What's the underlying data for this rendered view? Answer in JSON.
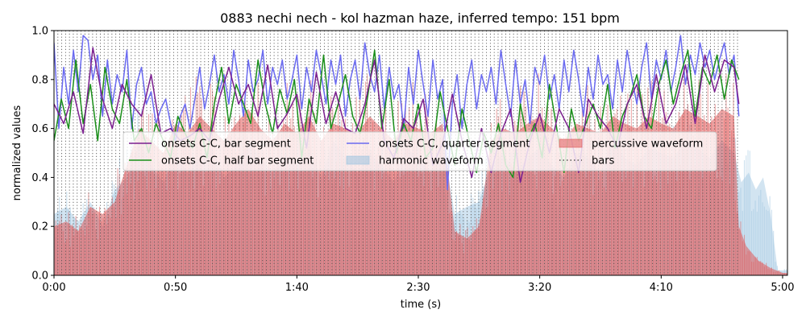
{
  "chart_data": {
    "type": "line",
    "title": "0883 nechi nech - kol hazman haze, inferred tempo: 151 bpm",
    "xlabel": "time (s)",
    "ylabel": "normalized values",
    "xlim": [
      0,
      302
    ],
    "ylim": [
      0,
      1.0
    ],
    "x_ticks": [
      {
        "value": 0,
        "label": "0:00"
      },
      {
        "value": 50,
        "label": "0:50"
      },
      {
        "value": 100,
        "label": "1:40"
      },
      {
        "value": 150,
        "label": "2:30"
      },
      {
        "value": 200,
        "label": "3:20"
      },
      {
        "value": 250,
        "label": "4:10"
      },
      {
        "value": 300,
        "label": "5:00"
      }
    ],
    "y_ticks": [
      {
        "value": 0.0,
        "label": "0.0"
      },
      {
        "value": 0.2,
        "label": "0.2"
      },
      {
        "value": 0.4,
        "label": "0.4"
      },
      {
        "value": 0.6,
        "label": "0.6"
      },
      {
        "value": 0.8,
        "label": "0.8"
      },
      {
        "value": 1.0,
        "label": "1.0"
      }
    ],
    "grid": false,
    "legend_position": "center",
    "bars": {
      "start": 0,
      "end": 282,
      "interval": 1.59,
      "color": "#555555"
    },
    "series": [
      {
        "name": "onsets C-C, bar segment",
        "kind": "line",
        "color": "#7b1f8f",
        "x": [
          0,
          4,
          8,
          12,
          16,
          20,
          24,
          28,
          32,
          36,
          40,
          44,
          48,
          52,
          56,
          60,
          64,
          68,
          72,
          76,
          80,
          84,
          88,
          92,
          96,
          100,
          104,
          108,
          112,
          116,
          120,
          124,
          128,
          132,
          136,
          140,
          144,
          148,
          152,
          156,
          160,
          164,
          168,
          172,
          176,
          180,
          184,
          188,
          192,
          196,
          200,
          204,
          208,
          212,
          216,
          220,
          224,
          228,
          232,
          236,
          240,
          244,
          248,
          252,
          256,
          260,
          264,
          268,
          272,
          276,
          280,
          282
        ],
        "y": [
          0.7,
          0.62,
          0.75,
          0.58,
          0.93,
          0.72,
          0.6,
          0.78,
          0.7,
          0.65,
          0.82,
          0.58,
          0.6,
          0.55,
          0.57,
          0.6,
          0.55,
          0.72,
          0.85,
          0.7,
          0.78,
          0.65,
          0.86,
          0.6,
          0.66,
          0.74,
          0.52,
          0.83,
          0.62,
          0.75,
          0.6,
          0.58,
          0.7,
          0.88,
          0.55,
          0.48,
          0.64,
          0.6,
          0.72,
          0.45,
          0.54,
          0.74,
          0.55,
          0.4,
          0.6,
          0.42,
          0.58,
          0.68,
          0.38,
          0.55,
          0.66,
          0.5,
          0.68,
          0.6,
          0.42,
          0.72,
          0.65,
          0.6,
          0.52,
          0.7,
          0.78,
          0.6,
          0.82,
          0.62,
          0.7,
          0.86,
          0.62,
          0.9,
          0.75,
          0.88,
          0.85,
          0.7
        ]
      },
      {
        "name": "onsets C-C, half bar segment",
        "kind": "line",
        "color": "#1a8f1a",
        "x": [
          0,
          3,
          6,
          9,
          12,
          15,
          18,
          21,
          24,
          27,
          30,
          33,
          36,
          39,
          42,
          45,
          48,
          51,
          54,
          57,
          60,
          63,
          66,
          69,
          72,
          75,
          78,
          81,
          84,
          87,
          90,
          93,
          96,
          99,
          102,
          105,
          108,
          111,
          114,
          117,
          120,
          123,
          126,
          129,
          132,
          135,
          138,
          141,
          144,
          147,
          150,
          153,
          156,
          159,
          162,
          165,
          168,
          171,
          174,
          177,
          180,
          183,
          186,
          189,
          192,
          195,
          198,
          201,
          204,
          207,
          210,
          213,
          216,
          219,
          222,
          225,
          228,
          231,
          234,
          237,
          240,
          243,
          246,
          249,
          252,
          255,
          258,
          261,
          264,
          267,
          270,
          273,
          276,
          279,
          282
        ],
        "y": [
          0.55,
          0.72,
          0.6,
          0.88,
          0.62,
          0.78,
          0.55,
          0.85,
          0.68,
          0.62,
          0.8,
          0.55,
          0.6,
          0.5,
          0.62,
          0.55,
          0.48,
          0.65,
          0.58,
          0.52,
          0.62,
          0.48,
          0.7,
          0.85,
          0.62,
          0.78,
          0.7,
          0.62,
          0.88,
          0.7,
          0.58,
          0.76,
          0.66,
          0.8,
          0.48,
          0.72,
          0.62,
          0.9,
          0.6,
          0.7,
          0.82,
          0.65,
          0.58,
          0.72,
          0.92,
          0.6,
          0.8,
          0.5,
          0.62,
          0.55,
          0.7,
          0.48,
          0.52,
          0.75,
          0.6,
          0.45,
          0.68,
          0.55,
          0.42,
          0.58,
          0.5,
          0.62,
          0.45,
          0.4,
          0.7,
          0.55,
          0.62,
          0.48,
          0.78,
          0.6,
          0.42,
          0.68,
          0.55,
          0.62,
          0.7,
          0.6,
          0.78,
          0.52,
          0.65,
          0.72,
          0.82,
          0.65,
          0.6,
          0.78,
          0.88,
          0.7,
          0.82,
          0.92,
          0.65,
          0.85,
          0.78,
          0.9,
          0.72,
          0.88,
          0.8
        ]
      },
      {
        "name": "onsets C-C, quarter segment",
        "kind": "line",
        "color": "#6a6af0",
        "x": [
          0,
          2,
          4,
          6,
          8,
          10,
          12,
          14,
          16,
          18,
          20,
          22,
          24,
          26,
          28,
          30,
          32,
          34,
          36,
          38,
          40,
          42,
          44,
          46,
          48,
          50,
          52,
          54,
          56,
          58,
          60,
          62,
          64,
          66,
          68,
          70,
          72,
          74,
          76,
          78,
          80,
          82,
          84,
          86,
          88,
          90,
          92,
          94,
          96,
          98,
          100,
          102,
          104,
          106,
          108,
          110,
          112,
          114,
          116,
          118,
          120,
          122,
          124,
          126,
          128,
          130,
          132,
          134,
          136,
          138,
          140,
          142,
          144,
          146,
          148,
          150,
          152,
          154,
          156,
          158,
          160,
          162,
          164,
          166,
          168,
          170,
          172,
          174,
          176,
          178,
          180,
          182,
          184,
          186,
          188,
          190,
          192,
          194,
          196,
          198,
          200,
          202,
          204,
          206,
          208,
          210,
          212,
          214,
          216,
          218,
          220,
          222,
          224,
          226,
          228,
          230,
          232,
          234,
          236,
          238,
          240,
          242,
          244,
          246,
          248,
          250,
          252,
          254,
          256,
          258,
          260,
          262,
          264,
          266,
          268,
          270,
          272,
          274,
          276,
          278,
          280,
          282
        ],
        "y": [
          0.95,
          0.6,
          0.85,
          0.7,
          0.92,
          0.75,
          0.98,
          0.96,
          0.8,
          0.9,
          0.65,
          0.88,
          0.7,
          0.82,
          0.75,
          0.92,
          0.6,
          0.78,
          0.85,
          0.7,
          0.75,
          0.62,
          0.68,
          0.72,
          0.62,
          0.55,
          0.65,
          0.7,
          0.6,
          0.72,
          0.85,
          0.68,
          0.78,
          0.9,
          0.75,
          0.82,
          0.7,
          0.92,
          0.8,
          0.65,
          0.88,
          0.75,
          0.8,
          0.92,
          0.7,
          0.85,
          0.78,
          0.88,
          0.72,
          0.8,
          0.9,
          0.68,
          0.85,
          0.75,
          0.92,
          0.82,
          0.7,
          0.88,
          0.78,
          0.9,
          0.65,
          0.8,
          0.88,
          0.72,
          0.95,
          0.82,
          0.75,
          0.9,
          0.68,
          0.85,
          0.72,
          0.78,
          0.6,
          0.85,
          0.7,
          0.92,
          0.78,
          0.65,
          0.88,
          0.72,
          0.8,
          0.35,
          0.7,
          0.82,
          0.6,
          0.78,
          0.88,
          0.68,
          0.82,
          0.75,
          0.85,
          0.7,
          0.92,
          0.78,
          0.65,
          0.88,
          0.7,
          0.8,
          0.62,
          0.85,
          0.78,
          0.9,
          0.72,
          0.82,
          0.68,
          0.88,
          0.75,
          0.92,
          0.8,
          0.65,
          0.85,
          0.72,
          0.9,
          0.78,
          0.82,
          0.68,
          0.88,
          0.75,
          0.92,
          0.8,
          0.7,
          0.85,
          0.95,
          0.72,
          0.88,
          0.8,
          0.92,
          0.75,
          0.85,
          0.98,
          0.78,
          0.9,
          0.82,
          0.95,
          0.85,
          0.92,
          0.8,
          0.88,
          0.95,
          0.82,
          0.9,
          0.65
        ]
      },
      {
        "name": "harmonic waveform",
        "kind": "area",
        "color": "#9cc3e0",
        "x": [
          0,
          5,
          10,
          15,
          20,
          25,
          30,
          35,
          40,
          45,
          50,
          55,
          60,
          65,
          70,
          75,
          80,
          85,
          90,
          95,
          100,
          105,
          110,
          115,
          120,
          125,
          130,
          135,
          140,
          145,
          150,
          155,
          160,
          165,
          170,
          175,
          180,
          185,
          190,
          195,
          200,
          205,
          210,
          215,
          220,
          225,
          230,
          235,
          240,
          245,
          250,
          255,
          260,
          265,
          270,
          275,
          280,
          283,
          286,
          289,
          292,
          295,
          298,
          302
        ],
        "y": [
          0.25,
          0.28,
          0.22,
          0.3,
          0.2,
          0.35,
          0.4,
          0.55,
          0.45,
          0.38,
          0.5,
          0.42,
          0.48,
          0.52,
          0.4,
          0.45,
          0.55,
          0.48,
          0.42,
          0.5,
          0.45,
          0.52,
          0.4,
          0.55,
          0.48,
          0.42,
          0.5,
          0.45,
          0.38,
          0.52,
          0.48,
          0.42,
          0.55,
          0.25,
          0.28,
          0.3,
          0.45,
          0.5,
          0.42,
          0.48,
          0.52,
          0.45,
          0.4,
          0.5,
          0.48,
          0.42,
          0.55,
          0.48,
          0.45,
          0.52,
          0.5,
          0.48,
          0.55,
          0.52,
          0.48,
          0.55,
          0.5,
          0.38,
          0.42,
          0.35,
          0.4,
          0.25,
          0.02,
          0.02
        ]
      },
      {
        "name": "percussive waveform",
        "kind": "area",
        "color": "#e05a5a",
        "x": [
          0,
          5,
          10,
          15,
          20,
          25,
          30,
          35,
          40,
          45,
          50,
          55,
          60,
          65,
          70,
          75,
          80,
          85,
          90,
          95,
          100,
          105,
          110,
          115,
          120,
          125,
          130,
          135,
          140,
          145,
          150,
          155,
          160,
          165,
          170,
          175,
          180,
          185,
          190,
          195,
          200,
          205,
          210,
          215,
          220,
          225,
          230,
          235,
          240,
          245,
          250,
          255,
          260,
          265,
          270,
          275,
          280,
          282,
          285,
          290,
          295,
          300,
          302
        ],
        "y": [
          0.2,
          0.22,
          0.18,
          0.28,
          0.25,
          0.3,
          0.45,
          0.6,
          0.55,
          0.5,
          0.62,
          0.58,
          0.65,
          0.6,
          0.55,
          0.62,
          0.68,
          0.6,
          0.55,
          0.62,
          0.58,
          0.65,
          0.55,
          0.62,
          0.6,
          0.58,
          0.65,
          0.6,
          0.55,
          0.62,
          0.6,
          0.58,
          0.62,
          0.18,
          0.15,
          0.2,
          0.55,
          0.6,
          0.58,
          0.62,
          0.65,
          0.6,
          0.55,
          0.62,
          0.6,
          0.58,
          0.65,
          0.62,
          0.6,
          0.65,
          0.62,
          0.6,
          0.68,
          0.65,
          0.62,
          0.68,
          0.65,
          0.2,
          0.12,
          0.06,
          0.03,
          0.01,
          0.01
        ]
      }
    ],
    "legend": [
      {
        "label": "onsets C-C, bar segment",
        "kind": "line",
        "color": "#7b1f8f"
      },
      {
        "label": "onsets C-C, quarter segment",
        "kind": "line",
        "color": "#6a6af0"
      },
      {
        "label": "percussive waveform",
        "kind": "patch",
        "color": "#e05a5a"
      },
      {
        "label": "onsets C-C, half bar segment",
        "kind": "line",
        "color": "#1a8f1a"
      },
      {
        "label": "harmonic waveform",
        "kind": "patch",
        "color": "#9cc3e0"
      },
      {
        "label": "bars",
        "kind": "dotted",
        "color": "#555555"
      }
    ]
  }
}
